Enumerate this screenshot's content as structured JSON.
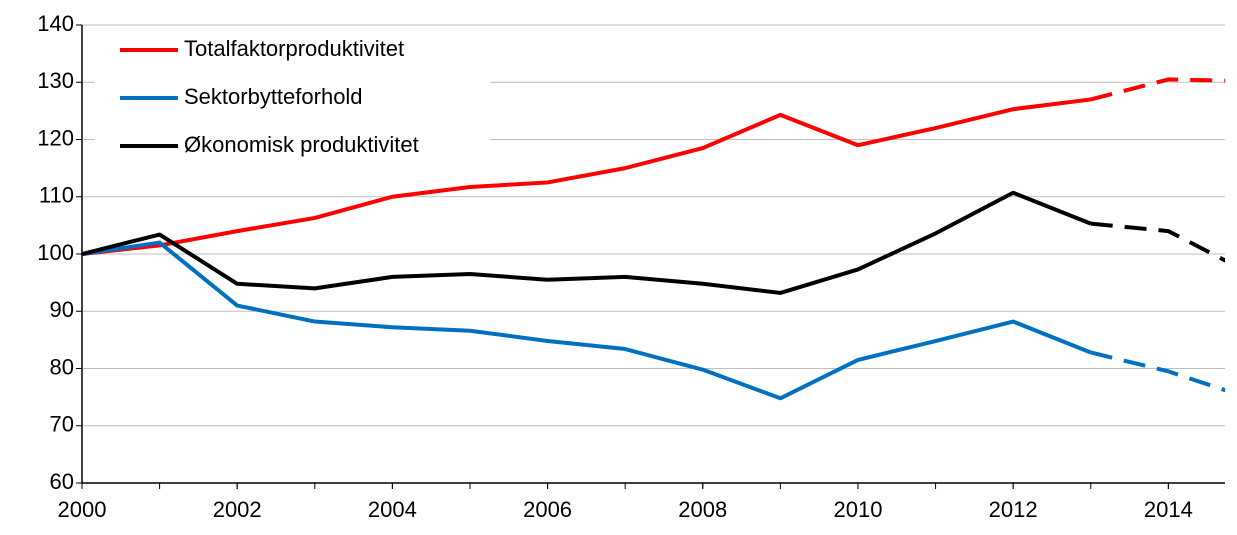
{
  "chart_data": {
    "type": "line",
    "x": [
      2000,
      2001,
      2002,
      2003,
      2004,
      2005,
      2006,
      2007,
      2008,
      2009,
      2010,
      2011,
      2012,
      2013,
      2014,
      2015
    ],
    "series": [
      {
        "name": "Totalfaktorproduktivitet",
        "color": "#ff0000",
        "values": [
          100,
          101.5,
          104,
          106.3,
          110,
          111.7,
          112.5,
          115,
          118.5,
          124.3,
          119,
          122,
          125.3,
          127,
          130.5,
          130.2
        ]
      },
      {
        "name": "Sektorbytteforhold",
        "color": "#0070c0",
        "values": [
          100,
          102,
          91,
          88.2,
          87.2,
          86.6,
          84.8,
          83.4,
          79.8,
          74.8,
          81.5,
          84.8,
          88.2,
          82.8,
          79.5,
          75
        ]
      },
      {
        "name": "Økonomisk produktivitet",
        "color": "#000000",
        "values": [
          100,
          103.4,
          94.8,
          94,
          96,
          96.5,
          95.5,
          96,
          94.8,
          93.2,
          97.3,
          103.6,
          110.7,
          105.3,
          104,
          97
        ]
      }
    ],
    "dashed_from": 2013,
    "xlim": [
      2000,
      2014.73
    ],
    "xticks": [
      2000,
      2002,
      2004,
      2006,
      2008,
      2010,
      2012,
      2014
    ],
    "ylim": [
      60,
      140
    ],
    "yticks": [
      60,
      70,
      80,
      90,
      100,
      110,
      120,
      130,
      140
    ],
    "grid": true,
    "legend": "top-left"
  }
}
